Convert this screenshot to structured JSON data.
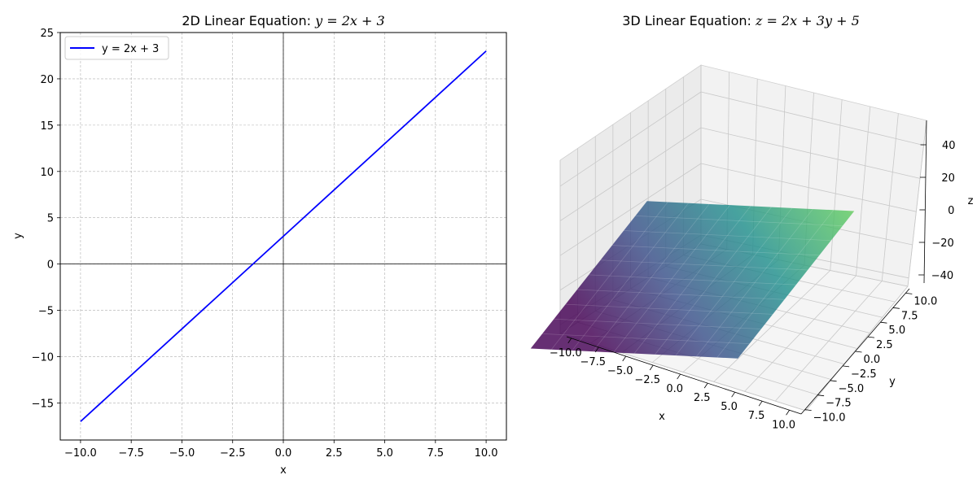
{
  "chart_data": [
    {
      "type": "line",
      "title_prefix": "2D Linear Equation: ",
      "title_math": "y = 2x + 3",
      "xlabel": "x",
      "ylabel": "y",
      "xlim": [
        -11,
        11
      ],
      "ylim": [
        -19,
        25
      ],
      "xticks": [
        -10.0,
        -7.5,
        -5.0,
        -2.5,
        0.0,
        2.5,
        5.0,
        7.5,
        10.0
      ],
      "yticks": [
        -15,
        -10,
        -5,
        0,
        5,
        10,
        15,
        20,
        25
      ],
      "xtick_labels": [
        "−10.0",
        "−7.5",
        "−5.0",
        "−2.5",
        "0.0",
        "2.5",
        "5.0",
        "7.5",
        "10.0"
      ],
      "ytick_labels": [
        "−15",
        "−10",
        "−5",
        "0",
        "5",
        "10",
        "15",
        "20",
        "25"
      ],
      "grid": true,
      "legend": "upper-left",
      "series": [
        {
          "name": "y = 2x + 3",
          "color": "#0000ff",
          "x": [
            -10,
            10
          ],
          "y": [
            -17,
            23
          ]
        }
      ]
    },
    {
      "type": "surface",
      "title_prefix": "3D Linear Equation: ",
      "title_math": "z = 2x + 3y + 5",
      "xlabel": "x",
      "ylabel": "y",
      "zlabel": "z",
      "xlim": [
        -10,
        10
      ],
      "ylim": [
        -10,
        10
      ],
      "zlim": [
        -45,
        55
      ],
      "xticks": [
        -10.0,
        -7.5,
        -5.0,
        -2.5,
        0.0,
        2.5,
        5.0,
        7.5,
        10.0
      ],
      "yticks": [
        -10.0,
        -7.5,
        -5.0,
        -2.5,
        0.0,
        2.5,
        5.0,
        7.5,
        10.0
      ],
      "zticks": [
        -40,
        -20,
        0,
        20,
        40
      ],
      "xtick_labels": [
        "−10.0",
        "−7.5",
        "−5.0",
        "−2.5",
        "0.0",
        "2.5",
        "5.0",
        "7.5",
        "10.0"
      ],
      "ytick_labels": [
        "−10.0",
        "−7.5",
        "−5.0",
        "−2.5",
        "0.0",
        "2.5",
        "5.0",
        "7.5",
        "10.0"
      ],
      "ztick_labels": [
        "−40",
        "−20",
        "0",
        "20",
        "40"
      ],
      "colormap": "viridis",
      "corners": [
        {
          "x": -10,
          "y": -10,
          "z": -45
        },
        {
          "x": 10,
          "y": -10,
          "z": -5
        },
        {
          "x": 10,
          "y": 10,
          "z": 55
        },
        {
          "x": -10,
          "y": 10,
          "z": 15
        }
      ]
    }
  ]
}
